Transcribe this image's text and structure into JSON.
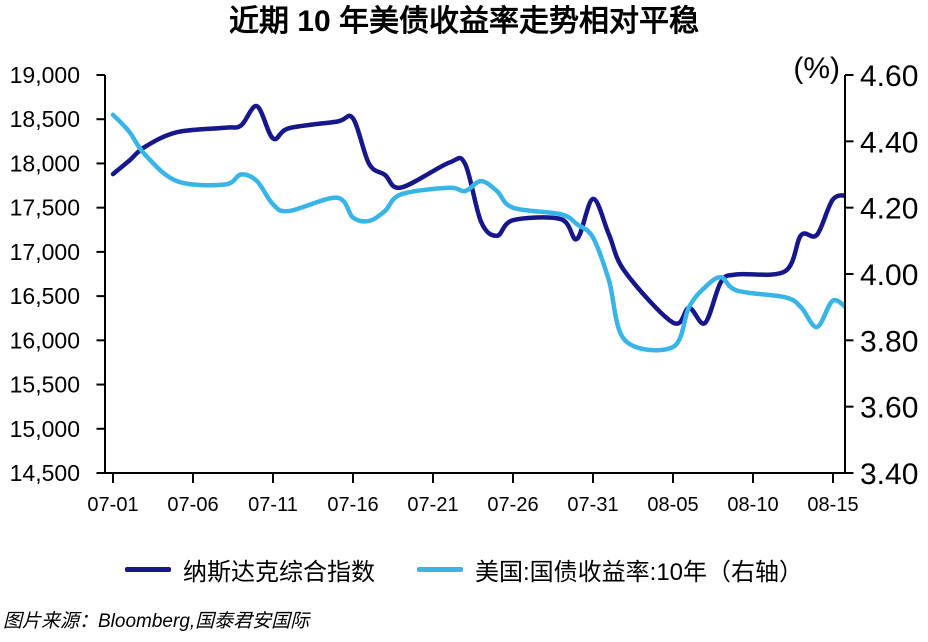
{
  "title": "近期 10 年美债收益率走势相对平稳",
  "source_note": "图片来源：Bloomberg,国泰君安国际",
  "legend": {
    "items": [
      {
        "label": "纳斯达克综合指数",
        "color": "#16178b"
      },
      {
        "label": "美国:国债收益率:10年（右轴）",
        "color": "#38b5e6"
      }
    ]
  },
  "chart_data": {
    "type": "line",
    "title": "近期 10 年美债收益率走势相对平稳",
    "x": [
      "07-01",
      "07-02",
      "07-03",
      "07-05",
      "07-08",
      "07-09",
      "07-10",
      "07-11",
      "07-12",
      "07-15",
      "07-16",
      "07-17",
      "07-18",
      "07-19",
      "07-22",
      "07-23",
      "07-24",
      "07-25",
      "07-26",
      "07-29",
      "07-30",
      "07-31",
      "08-01",
      "08-02",
      "08-05",
      "08-06",
      "08-07",
      "08-08",
      "08-09",
      "08-12",
      "08-13",
      "08-14",
      "08-15",
      "08-16"
    ],
    "series": [
      {
        "name": "纳斯达克综合指数",
        "axis": "left",
        "color": "#16178b",
        "values": [
          17879,
          18029,
          18188,
          18353,
          18404,
          18429,
          18647,
          18283,
          18398,
          18473,
          18509,
          17997,
          17871,
          17727,
          18008,
          17997,
          17342,
          17182,
          17358,
          17370,
          17147,
          17599,
          17194,
          16776,
          16200,
          16367,
          16196,
          16660,
          16745,
          16781,
          17188,
          17193,
          17595,
          17632
        ]
      },
      {
        "name": "美国:国债收益率:10年（右轴）",
        "axis": "right",
        "color": "#38b5e6",
        "values": [
          4.48,
          4.43,
          4.36,
          4.28,
          4.27,
          4.3,
          4.28,
          4.21,
          4.19,
          4.23,
          4.17,
          4.16,
          4.19,
          4.24,
          4.26,
          4.25,
          4.28,
          4.25,
          4.2,
          4.18,
          4.15,
          4.11,
          3.98,
          3.8,
          3.78,
          3.9,
          3.96,
          3.99,
          3.95,
          3.93,
          3.9,
          3.84,
          3.92,
          3.89
        ]
      }
    ],
    "x_tick_labels": [
      "07-01",
      "07-06",
      "07-11",
      "07-16",
      "07-21",
      "07-26",
      "07-31",
      "08-05",
      "08-10",
      "08-15"
    ],
    "left_axis": {
      "min": 14500,
      "max": 19000,
      "tick_step": 500,
      "tick_labels": [
        "19,000",
        "18,500",
        "18,000",
        "17,500",
        "17,000",
        "16,500",
        "16,000",
        "15,500",
        "15,000",
        "14,500"
      ]
    },
    "right_axis": {
      "min": 3.4,
      "max": 4.6,
      "tick_step": 0.2,
      "unit_label": "(%)",
      "tick_labels": [
        "4.60",
        "4.40",
        "4.20",
        "4.00",
        "3.80",
        "3.60",
        "3.40"
      ]
    },
    "grid": false,
    "legend_position": "bottom",
    "axis_color": "#000000"
  }
}
